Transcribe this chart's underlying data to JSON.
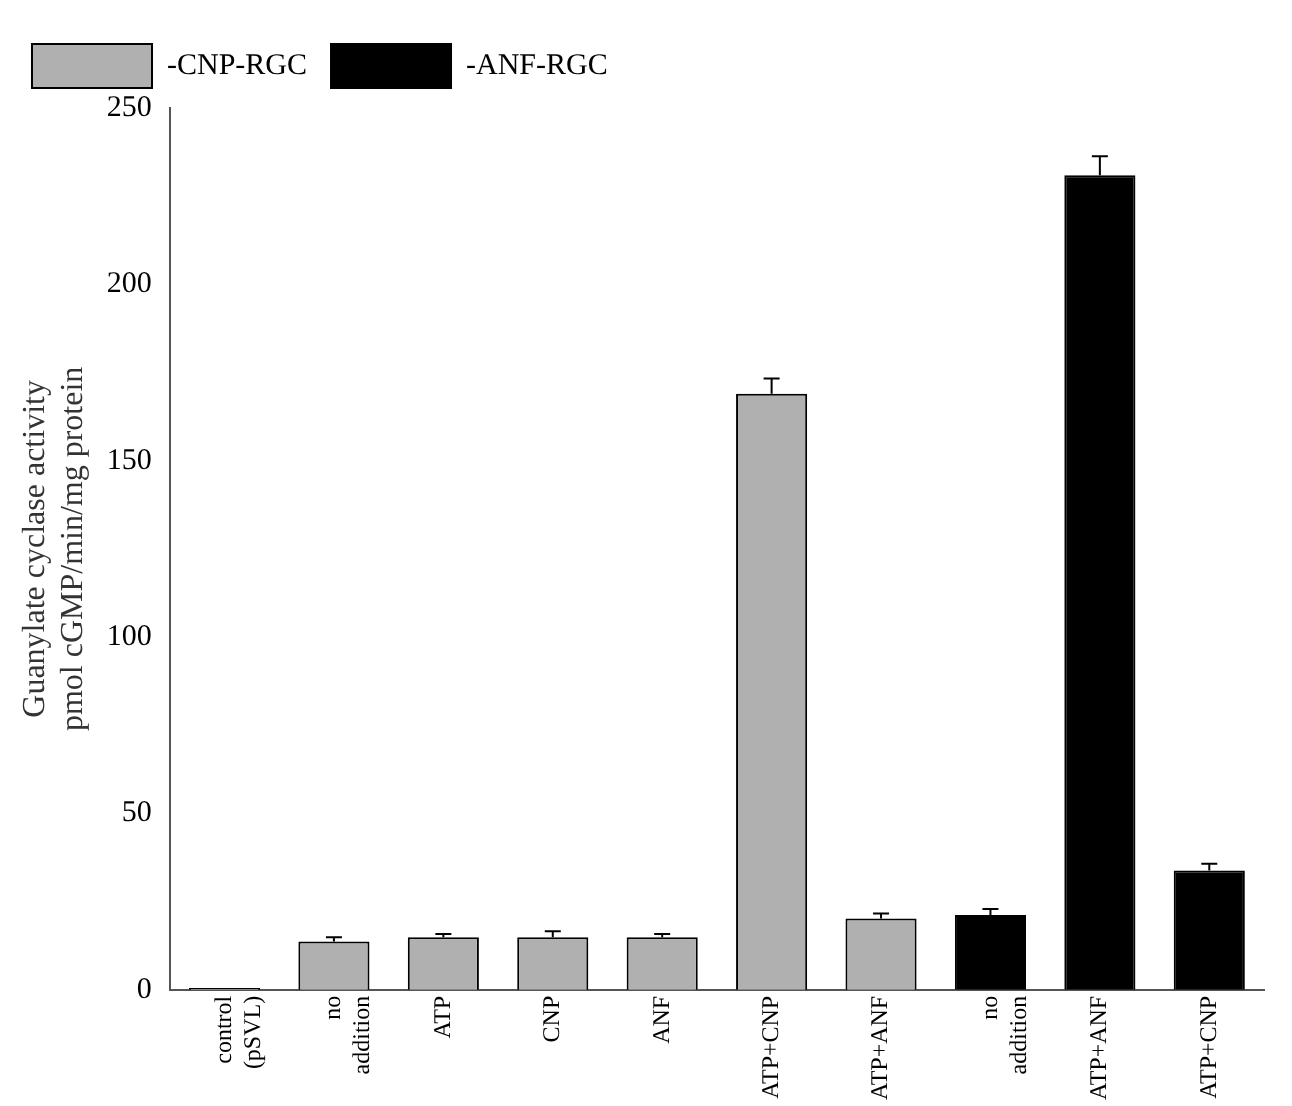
{
  "chart_data": {
    "type": "bar",
    "ylabel": "Guanylate cyclase activity\npmol cGMP/min/mg protein",
    "categories": [
      "control (pSVL)",
      "no addition",
      "ATP",
      "CNP",
      "ANF",
      "ATP+CNP",
      "ATP+ANF",
      "no addition",
      "ATP+ANF",
      "ATP+CNP"
    ],
    "series": [
      {
        "name": "-CNP-RGC",
        "color": "#b0b0b0",
        "values": [
          0.5,
          13.7,
          14.9,
          14.9,
          14.9,
          169,
          20.2,
          null,
          null,
          null
        ],
        "errors": [
          null,
          1.2,
          0.9,
          1.7,
          0.9,
          4.3,
          1.4,
          null,
          null,
          null
        ]
      },
      {
        "name": "-ANF-RGC",
        "color": "#000000",
        "values": [
          null,
          null,
          null,
          null,
          null,
          null,
          null,
          21.2,
          230.9,
          33.8
        ],
        "errors": [
          null,
          null,
          null,
          null,
          null,
          null,
          null,
          1.7,
          5.4,
          1.9
        ]
      }
    ],
    "ylim": [
      0,
      250
    ],
    "yticks": [
      0,
      50,
      100,
      150,
      200,
      250
    ],
    "grid": false,
    "legend": "top left"
  }
}
